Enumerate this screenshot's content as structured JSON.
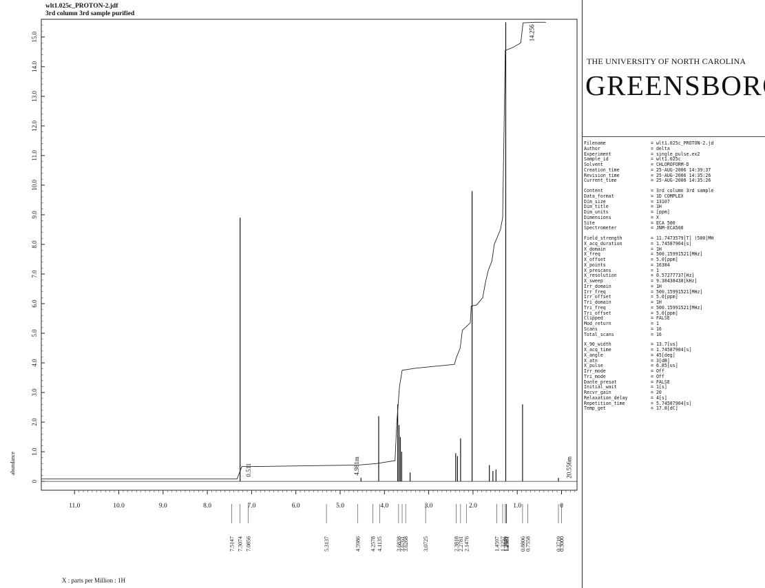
{
  "header": {
    "line1": "wlt1.025c_PROTON-2.jdf",
    "line2": "3rd column 3rd sample purified"
  },
  "logo": {
    "top": "THE UNIVERSITY OF NORTH CAROLINA",
    "main": "GREENSBORO"
  },
  "params": [
    [
      [
        "Filename",
        "= wlt1.025c_PROTON-2.jd"
      ],
      [
        "Author",
        "= delta"
      ],
      [
        "Experiment",
        "= single_pulse.ex2"
      ],
      [
        "Sample_id",
        "= wlt1.025c"
      ],
      [
        "Solvent",
        "= CHLOROFORM-D"
      ],
      [
        "Creation_time",
        "= 25-AUG-2006 14:39:37"
      ],
      [
        "Revision_time",
        "= 25-AUG-2006 14:35:26"
      ],
      [
        "Current_time",
        "= 25-AUG-2006 14:35:26"
      ]
    ],
    [
      [
        "Content",
        "= 3rd column 3rd sample"
      ],
      [
        "Data_format",
        "= 1D COMPLEX"
      ],
      [
        "Dim_size",
        "= 13107"
      ],
      [
        "Dim_title",
        "= 1H"
      ],
      [
        "Dim_units",
        "= [ppm]"
      ],
      [
        "Dimensions",
        "= X"
      ],
      [
        "Site",
        "= ECA 500"
      ],
      [
        "Spectrometer",
        "= JNM-ECA500"
      ]
    ],
    [
      [
        "Field_strength",
        "= 11.7473579[T] (500[MH"
      ],
      [
        "X_acq_duration",
        "= 1.74587904[s]"
      ],
      [
        "X_domain",
        "= 1H"
      ],
      [
        "X_freq",
        "= 500.15991521[MHz]"
      ],
      [
        "X_offset",
        "= 5.0[ppm]"
      ],
      [
        "X_points",
        "= 16384"
      ],
      [
        "X_prescans",
        "= 1"
      ],
      [
        "X_resolution",
        "= 0.57277737[Hz]"
      ],
      [
        "X_sweep",
        "= 9.38438438[kHz]"
      ],
      [
        "Irr_domain",
        "= 1H"
      ],
      [
        "Irr_freq",
        "= 500.15991521[MHz]"
      ],
      [
        "Irr_offset",
        "= 5.0[ppm]"
      ],
      [
        "Tri_domain",
        "= 1H"
      ],
      [
        "Tri_freq",
        "= 500.15991521[MHz]"
      ],
      [
        "Tri_offset",
        "= 5.0[ppm]"
      ],
      [
        "Clipped",
        "= FALSE"
      ],
      [
        "Mod_return",
        "= 1"
      ],
      [
        "Scans",
        "= 16"
      ],
      [
        "Total_scans",
        "= 16"
      ]
    ],
    [
      [
        "X_90_width",
        "= 13.7[us]"
      ],
      [
        "X_acq_time",
        "= 1.74587904[s]"
      ],
      [
        "X_angle",
        "= 45[deg]"
      ],
      [
        "X_atn",
        "= 3[dB]"
      ],
      [
        "X_pulse",
        "= 6.85[us]"
      ],
      [
        "Irr_mode",
        "= Off"
      ],
      [
        "Tri_mode",
        "= Off"
      ],
      [
        "Dante_presat",
        "= FALSE"
      ],
      [
        "Initial_wait",
        "= 1[s]"
      ],
      [
        "Recvr_gain",
        "= 20"
      ],
      [
        "Relaxation_delay",
        "= 4[s]"
      ],
      [
        "Repetition_time",
        "= 5.74587904[s]"
      ],
      [
        "Temp_get",
        "= 17.8[dC]"
      ]
    ]
  ],
  "chart_data": {
    "type": "line",
    "xlabel": "X : parts per Million : 1H",
    "ylabel": "abundance",
    "xlim": [
      11.75,
      -0.35
    ],
    "ylim": [
      -0.3,
      15.6
    ],
    "x_ticks": [
      "11.0",
      "10.0",
      "9.0",
      "8.0",
      "7.0",
      "6.0",
      "5.0",
      "4.0",
      "3.0",
      "2.0",
      "1.0",
      "0"
    ],
    "x_tick_values": [
      11,
      10,
      9,
      8,
      7,
      6,
      5,
      4,
      3,
      2,
      1,
      0
    ],
    "y_ticks": [
      "0",
      "1.0",
      "2.0",
      "3.0",
      "4.0",
      "5.0",
      "6.0",
      "7.0",
      "8.0",
      "9.0",
      "10.0",
      "11.0",
      "12.0",
      "13.0",
      "14.0",
      "15.0"
    ],
    "y_tick_values": [
      0,
      1,
      2,
      3,
      4,
      5,
      6,
      7,
      8,
      9,
      10,
      11,
      12,
      13,
      14,
      15
    ],
    "peaks": [
      {
        "ppm": 7.26,
        "height": 8.9
      },
      {
        "ppm": 4.53,
        "height": 0.12
      },
      {
        "ppm": 4.13,
        "height": 2.2
      },
      {
        "ppm": 3.7,
        "height": 2.6
      },
      {
        "ppm": 3.67,
        "height": 1.9
      },
      {
        "ppm": 3.64,
        "height": 1.5
      },
      {
        "ppm": 3.61,
        "height": 1.0
      },
      {
        "ppm": 3.42,
        "height": 0.3
      },
      {
        "ppm": 2.39,
        "height": 0.95
      },
      {
        "ppm": 2.35,
        "height": 0.85
      },
      {
        "ppm": 2.28,
        "height": 1.45
      },
      {
        "ppm": 2.02,
        "height": 9.8
      },
      {
        "ppm": 1.63,
        "height": 0.55
      },
      {
        "ppm": 1.55,
        "height": 0.35
      },
      {
        "ppm": 1.48,
        "height": 0.4
      },
      {
        "ppm": 1.26,
        "height": 15.5
      },
      {
        "ppm": 0.88,
        "height": 2.6
      },
      {
        "ppm": 0.07,
        "height": 0.12
      }
    ],
    "integral_points": [
      [
        11.75,
        0.08
      ],
      [
        7.33,
        0.08
      ],
      [
        7.22,
        0.5
      ],
      [
        6.98,
        0.5
      ],
      [
        4.6,
        0.55
      ],
      [
        4.18,
        0.6
      ],
      [
        3.76,
        0.7
      ],
      [
        3.72,
        2.0
      ],
      [
        3.66,
        3.2
      ],
      [
        3.6,
        3.75
      ],
      [
        3.3,
        3.82
      ],
      [
        2.42,
        3.95
      ],
      [
        2.37,
        4.2
      ],
      [
        2.29,
        4.5
      ],
      [
        2.24,
        5.1
      ],
      [
        2.06,
        5.35
      ],
      [
        2.04,
        5.92
      ],
      [
        1.92,
        5.95
      ],
      [
        1.78,
        6.2
      ],
      [
        1.72,
        6.7
      ],
      [
        1.66,
        7.1
      ],
      [
        1.57,
        7.45
      ],
      [
        1.52,
        8.0
      ],
      [
        1.38,
        8.5
      ],
      [
        1.33,
        8.9
      ],
      [
        1.27,
        14.55
      ],
      [
        1.1,
        14.65
      ],
      [
        0.92,
        14.8
      ],
      [
        0.87,
        15.48
      ],
      [
        0.6,
        15.5
      ],
      [
        0.35,
        15.5
      ]
    ],
    "integral_labels": [
      {
        "text": "0.511",
        "ppm": 7.02,
        "y": 0.15
      },
      {
        "text": "4.981m",
        "ppm": 4.58,
        "y": 0.2
      },
      {
        "text": "14.256",
        "ppm": 0.62,
        "y": 14.85
      },
      {
        "text": "20.556m",
        "ppm": -0.22,
        "y": 0.1
      }
    ],
    "peak_labels": [
      {
        "text": "7.5147",
        "ppm": 7.45
      },
      {
        "text": "7.3074",
        "ppm": 7.26
      },
      {
        "text": "7.0856",
        "ppm": 7.08
      },
      {
        "text": "5.3137",
        "ppm": 5.31
      },
      {
        "text": "4.5986",
        "ppm": 4.6
      },
      {
        "text": "4.2578",
        "ppm": 4.26
      },
      {
        "text": "4.1135",
        "ppm": 4.11
      },
      {
        "text": "3.6838",
        "ppm": 3.68
      },
      {
        "text": "3.6761",
        "ppm": 3.6
      },
      {
        "text": "3.6268",
        "ppm": 3.52
      },
      {
        "text": "3.0725",
        "ppm": 3.07
      },
      {
        "text": "2.3818",
        "ppm": 2.38
      },
      {
        "text": "2.2781",
        "ppm": 2.28
      },
      {
        "text": "2.1476",
        "ppm": 2.15
      },
      {
        "text": "1.4597",
        "ppm": 1.46
      },
      {
        "text": "1.3257",
        "ppm": 1.33
      },
      {
        "text": "1.2689",
        "ppm": 1.27
      },
      {
        "text": "1.2381",
        "ppm": 1.24
      },
      {
        "text": "1.2471",
        "ppm": 1.25
      },
      {
        "text": "0.8806",
        "ppm": 0.88
      },
      {
        "text": "0.7558",
        "ppm": 0.76
      },
      {
        "text": "0.3719",
        "ppm": 0.07
      },
      {
        "text": "0.3000",
        "ppm": 0.0
      }
    ],
    "grid": false
  }
}
